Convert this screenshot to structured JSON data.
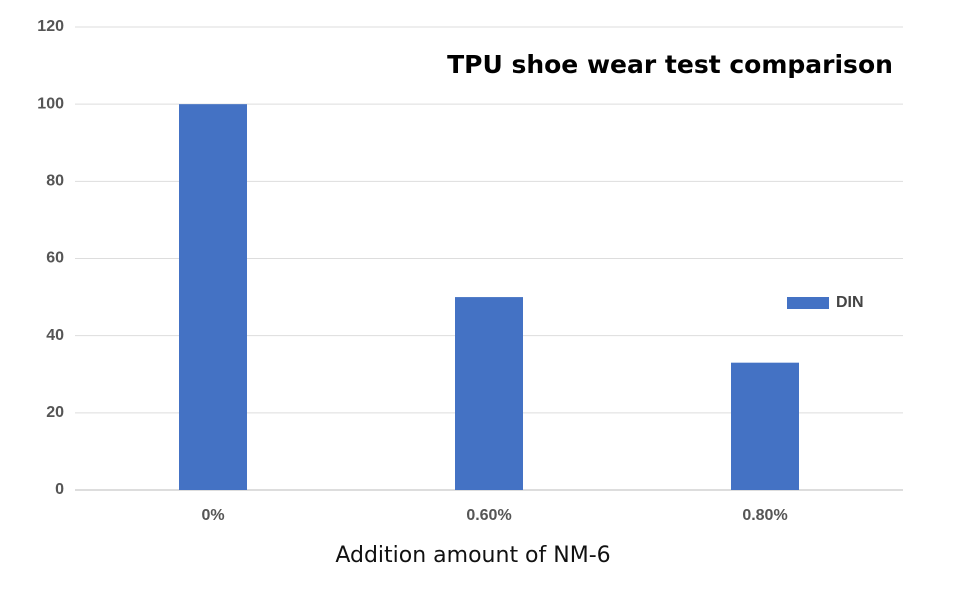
{
  "chart_data": {
    "type": "bar",
    "title": "TPU shoe wear test comparison",
    "x_label": "Addition amount of NM-6",
    "categories": [
      "0%",
      "0.60%",
      "0.80%"
    ],
    "series": [
      {
        "name": "DIN",
        "color": "#4472c4",
        "values": [
          100,
          50,
          33
        ]
      }
    ],
    "ylim": [
      0,
      120
    ],
    "yticks": [
      0,
      20,
      40,
      60,
      80,
      100,
      120
    ],
    "grid": true,
    "legend": "right"
  }
}
